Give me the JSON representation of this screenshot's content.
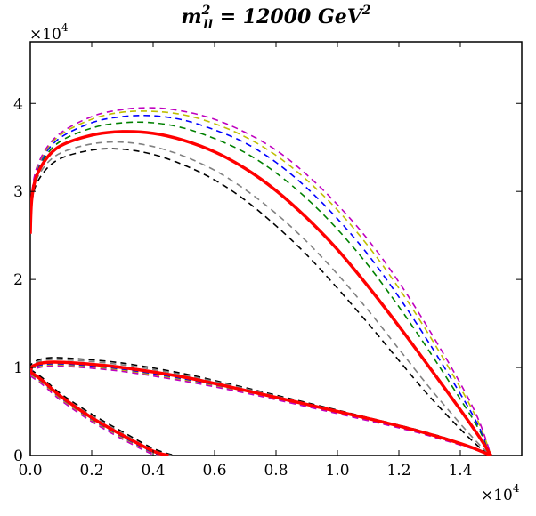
{
  "chart_data": {
    "type": "line",
    "title": {
      "symbol": "m",
      "superscript": "2",
      "subscript": "ll",
      "rest": " = 12000 ",
      "unit": "GeV",
      "unit_power": "2"
    },
    "x_axis": {
      "range": [
        0,
        16000
      ],
      "ticks": [
        0,
        2000,
        4000,
        6000,
        8000,
        10000,
        12000,
        14000
      ],
      "tick_labels": [
        "0.0",
        "0.2",
        "0.4",
        "0.6",
        "0.8",
        "1.0",
        "1.2",
        "1.4"
      ],
      "multiplier_base": "×10",
      "multiplier_exp": "4"
    },
    "y_axis": {
      "range": [
        0,
        47000
      ],
      "ticks": [
        0,
        10000,
        20000,
        30000,
        40000
      ],
      "tick_labels": [
        "0",
        "1",
        "2",
        "3",
        "4"
      ],
      "multiplier_base": "×10",
      "multiplier_exp": "4"
    },
    "series": [
      {
        "name": "black-dashed",
        "color": "#000000",
        "style": "dashed",
        "upper": [
          [
            0,
            25200
          ],
          [
            60,
            29000
          ],
          [
            300,
            31500
          ],
          [
            900,
            33600
          ],
          [
            2000,
            34700
          ],
          [
            3000,
            34800
          ],
          [
            4000,
            34200
          ],
          [
            5000,
            33000
          ],
          [
            6000,
            31300
          ],
          [
            7000,
            29000
          ],
          [
            8000,
            26100
          ],
          [
            9000,
            22800
          ],
          [
            10000,
            19000
          ],
          [
            11000,
            15000
          ],
          [
            12000,
            10800
          ],
          [
            13000,
            6700
          ],
          [
            14000,
            3000
          ],
          [
            14600,
            1000
          ],
          [
            15000,
            0
          ]
        ],
        "lower": [
          [
            0,
            9800
          ],
          [
            100,
            10600
          ],
          [
            600,
            11100
          ],
          [
            1500,
            11000
          ],
          [
            3000,
            10500
          ],
          [
            5000,
            9300
          ],
          [
            7000,
            7700
          ],
          [
            9000,
            6000
          ],
          [
            11000,
            4300
          ],
          [
            12500,
            3000
          ],
          [
            13500,
            2000
          ],
          [
            14300,
            1000
          ],
          [
            15000,
            0
          ]
        ],
        "inner": [
          [
            0,
            9800
          ],
          [
            400,
            8800
          ],
          [
            1000,
            7000
          ],
          [
            2000,
            4700
          ],
          [
            3000,
            2700
          ],
          [
            4000,
            800
          ],
          [
            4700,
            0
          ]
        ]
      },
      {
        "name": "gray-dashed",
        "color": "#808080",
        "style": "dashed",
        "upper": [
          [
            0,
            25200
          ],
          [
            60,
            29300
          ],
          [
            300,
            32000
          ],
          [
            900,
            34200
          ],
          [
            2000,
            35400
          ],
          [
            3000,
            35600
          ],
          [
            4000,
            35100
          ],
          [
            5000,
            34000
          ],
          [
            6000,
            32400
          ],
          [
            7000,
            30200
          ],
          [
            8000,
            27500
          ],
          [
            9000,
            24300
          ],
          [
            10000,
            20600
          ],
          [
            11000,
            16500
          ],
          [
            12000,
            12100
          ],
          [
            13000,
            7700
          ],
          [
            14000,
            3600
          ],
          [
            14600,
            1300
          ],
          [
            15000,
            0
          ]
        ],
        "lower": [
          [
            0,
            9600
          ],
          [
            100,
            10400
          ],
          [
            600,
            10900
          ],
          [
            1500,
            10800
          ],
          [
            3000,
            10300
          ],
          [
            5000,
            9150
          ],
          [
            7000,
            7600
          ],
          [
            9000,
            5900
          ],
          [
            11000,
            4250
          ],
          [
            12500,
            2950
          ],
          [
            13500,
            1950
          ],
          [
            14300,
            1000
          ],
          [
            15000,
            0
          ]
        ],
        "inner": [
          [
            0,
            9600
          ],
          [
            400,
            8600
          ],
          [
            1000,
            6800
          ],
          [
            2000,
            4500
          ],
          [
            3000,
            2500
          ],
          [
            4000,
            600
          ],
          [
            4600,
            0
          ]
        ]
      },
      {
        "name": "red-solid",
        "color": "#ff0000",
        "style": "solid",
        "upper": [
          [
            0,
            25200
          ],
          [
            60,
            29500
          ],
          [
            300,
            32500
          ],
          [
            900,
            35000
          ],
          [
            2000,
            36400
          ],
          [
            3000,
            36800
          ],
          [
            4000,
            36600
          ],
          [
            5000,
            35800
          ],
          [
            6000,
            34500
          ],
          [
            7000,
            32600
          ],
          [
            8000,
            30100
          ],
          [
            9000,
            27000
          ],
          [
            10000,
            23400
          ],
          [
            11000,
            19200
          ],
          [
            12000,
            14700
          ],
          [
            13000,
            10000
          ],
          [
            14000,
            5200
          ],
          [
            14600,
            2200
          ],
          [
            15000,
            0
          ]
        ],
        "lower": [
          [
            0,
            9500
          ],
          [
            100,
            10200
          ],
          [
            600,
            10600
          ],
          [
            1500,
            10500
          ],
          [
            3000,
            10000
          ],
          [
            5000,
            8900
          ],
          [
            7000,
            7400
          ],
          [
            9000,
            5800
          ],
          [
            11000,
            4200
          ],
          [
            12500,
            2900
          ],
          [
            13500,
            1900
          ],
          [
            14300,
            1000
          ],
          [
            15000,
            0
          ]
        ],
        "inner": [
          [
            0,
            9500
          ],
          [
            400,
            8500
          ],
          [
            1000,
            6700
          ],
          [
            2000,
            4300
          ],
          [
            3000,
            2300
          ],
          [
            4000,
            500
          ],
          [
            4500,
            0
          ]
        ]
      },
      {
        "name": "green-dashed",
        "color": "#008000",
        "style": "dashed",
        "upper": [
          [
            0,
            25200
          ],
          [
            60,
            29700
          ],
          [
            300,
            32800
          ],
          [
            900,
            35500
          ],
          [
            2000,
            37200
          ],
          [
            3000,
            37800
          ],
          [
            4000,
            37800
          ],
          [
            5000,
            37200
          ],
          [
            6000,
            36000
          ],
          [
            7000,
            34400
          ],
          [
            8000,
            32100
          ],
          [
            9000,
            29200
          ],
          [
            10000,
            25700
          ],
          [
            11000,
            21600
          ],
          [
            12000,
            16900
          ],
          [
            13000,
            11800
          ],
          [
            14000,
            6400
          ],
          [
            14600,
            3000
          ],
          [
            15000,
            0
          ]
        ],
        "lower": [
          [
            0,
            9350
          ],
          [
            100,
            10050
          ],
          [
            600,
            10450
          ],
          [
            1500,
            10350
          ],
          [
            3000,
            9850
          ],
          [
            5000,
            8750
          ],
          [
            7000,
            7300
          ],
          [
            9000,
            5700
          ],
          [
            11000,
            4100
          ],
          [
            12500,
            2850
          ],
          [
            13500,
            1850
          ],
          [
            14300,
            950
          ],
          [
            15000,
            0
          ]
        ],
        "inner": [
          [
            0,
            9350
          ],
          [
            400,
            8350
          ],
          [
            1000,
            6550
          ],
          [
            2000,
            4150
          ],
          [
            3000,
            2150
          ],
          [
            4000,
            350
          ],
          [
            4450,
            0
          ]
        ]
      },
      {
        "name": "blue-dashed",
        "color": "#0000ff",
        "style": "dashed",
        "upper": [
          [
            0,
            25200
          ],
          [
            60,
            29900
          ],
          [
            300,
            33100
          ],
          [
            900,
            35900
          ],
          [
            2000,
            37800
          ],
          [
            3000,
            38500
          ],
          [
            4000,
            38600
          ],
          [
            5000,
            38100
          ],
          [
            6000,
            37000
          ],
          [
            7000,
            35500
          ],
          [
            8000,
            33300
          ],
          [
            9000,
            30400
          ],
          [
            10000,
            26900
          ],
          [
            11000,
            22800
          ],
          [
            12000,
            18000
          ],
          [
            13000,
            12700
          ],
          [
            14000,
            7000
          ],
          [
            14600,
            3300
          ],
          [
            15000,
            0
          ]
        ],
        "lower": [
          [
            0,
            9250
          ],
          [
            100,
            9950
          ],
          [
            600,
            10350
          ],
          [
            1500,
            10250
          ],
          [
            3000,
            9750
          ],
          [
            5000,
            8650
          ],
          [
            7000,
            7200
          ],
          [
            9000,
            5650
          ],
          [
            11000,
            4050
          ],
          [
            12500,
            2800
          ],
          [
            13500,
            1800
          ],
          [
            14300,
            900
          ],
          [
            15000,
            0
          ]
        ],
        "inner": [
          [
            0,
            9250
          ],
          [
            400,
            8250
          ],
          [
            1000,
            6450
          ],
          [
            2000,
            4050
          ],
          [
            3000,
            2050
          ],
          [
            4000,
            250
          ],
          [
            4400,
            0
          ]
        ]
      },
      {
        "name": "olive-dashed",
        "color": "#bfbf00",
        "style": "dashed",
        "upper": [
          [
            0,
            25200
          ],
          [
            60,
            30000
          ],
          [
            300,
            33300
          ],
          [
            900,
            36200
          ],
          [
            2000,
            38200
          ],
          [
            3000,
            39000
          ],
          [
            4000,
            39100
          ],
          [
            5000,
            38700
          ],
          [
            6000,
            37700
          ],
          [
            7000,
            36200
          ],
          [
            8000,
            34100
          ],
          [
            9000,
            31300
          ],
          [
            10000,
            27900
          ],
          [
            11000,
            23800
          ],
          [
            12000,
            19000
          ],
          [
            13000,
            13600
          ],
          [
            14000,
            7700
          ],
          [
            14600,
            3700
          ],
          [
            15000,
            0
          ]
        ],
        "lower": [
          [
            0,
            9150
          ],
          [
            100,
            9850
          ],
          [
            600,
            10250
          ],
          [
            1500,
            10150
          ],
          [
            3000,
            9650
          ],
          [
            5000,
            8550
          ],
          [
            7000,
            7150
          ],
          [
            9000,
            5600
          ],
          [
            11000,
            4000
          ],
          [
            12500,
            2750
          ],
          [
            13500,
            1750
          ],
          [
            14300,
            880
          ],
          [
            15000,
            0
          ]
        ],
        "inner": [
          [
            0,
            9150
          ],
          [
            400,
            8150
          ],
          [
            1000,
            6350
          ],
          [
            2000,
            3950
          ],
          [
            3000,
            1950
          ],
          [
            4000,
            150
          ],
          [
            4350,
            0
          ]
        ]
      },
      {
        "name": "magenta-dashed",
        "color": "#bf00bf",
        "style": "dashed",
        "upper": [
          [
            0,
            25200
          ],
          [
            60,
            30100
          ],
          [
            300,
            33500
          ],
          [
            900,
            36400
          ],
          [
            2000,
            38500
          ],
          [
            3000,
            39300
          ],
          [
            4000,
            39500
          ],
          [
            5000,
            39100
          ],
          [
            6000,
            38200
          ],
          [
            7000,
            36700
          ],
          [
            8000,
            34700
          ],
          [
            9000,
            31900
          ],
          [
            10000,
            28500
          ],
          [
            11000,
            24500
          ],
          [
            12000,
            19700
          ],
          [
            13000,
            14200
          ],
          [
            14000,
            8200
          ],
          [
            14600,
            4000
          ],
          [
            15000,
            0
          ]
        ],
        "lower": [
          [
            0,
            9050
          ],
          [
            100,
            9750
          ],
          [
            600,
            10150
          ],
          [
            1500,
            10050
          ],
          [
            3000,
            9550
          ],
          [
            5000,
            8450
          ],
          [
            7000,
            7100
          ],
          [
            9000,
            5550
          ],
          [
            11000,
            3950
          ],
          [
            12500,
            2700
          ],
          [
            13500,
            1700
          ],
          [
            14300,
            860
          ],
          [
            15000,
            0
          ]
        ],
        "inner": [
          [
            0,
            9050
          ],
          [
            400,
            8050
          ],
          [
            1000,
            6250
          ],
          [
            2000,
            3850
          ],
          [
            3000,
            1850
          ],
          [
            4000,
            100
          ],
          [
            4300,
            0
          ]
        ]
      }
    ]
  }
}
